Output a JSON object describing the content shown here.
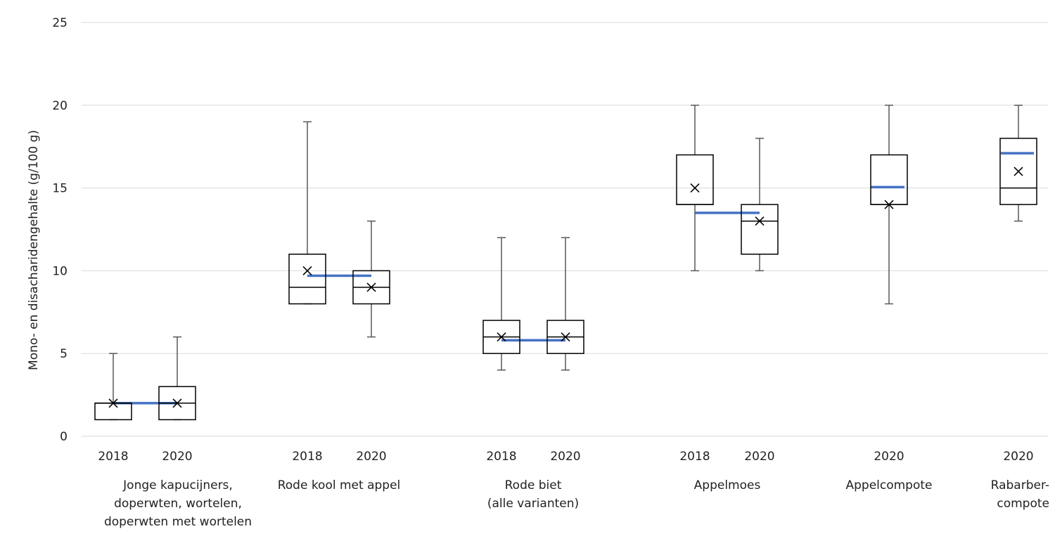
{
  "chart_data": {
    "type": "boxplot",
    "ylabel": "Mono- en disacharidengehalte  (g/100 g)",
    "ylim": [
      0,
      25
    ],
    "yticks": [
      0,
      5,
      10,
      15,
      20,
      25
    ],
    "grid": true,
    "colors": {
      "box": "#000000",
      "whisker": "#595959",
      "grid": "#d9d9d9",
      "trend": "#4472c4"
    },
    "groups": [
      {
        "label_lines": [
          "Jonge kapucijners,",
          "doperwten, wortelen,",
          "doperwten met wortelen"
        ],
        "boxes": [
          {
            "year": "2018",
            "min": 1,
            "q1": 1,
            "median": 2,
            "q3": 2,
            "max": 5,
            "mean": 2
          },
          {
            "year": "2020",
            "min": 1,
            "q1": 1,
            "median": 2,
            "q3": 3,
            "max": 6,
            "mean": 2
          }
        ],
        "trend_level": 2
      },
      {
        "label_lines": [
          "Rode kool met appel"
        ],
        "boxes": [
          {
            "year": "2018",
            "min": 8,
            "q1": 8,
            "median": 9,
            "q3": 11,
            "max": 19,
            "mean": 10
          },
          {
            "year": "2020",
            "min": 6,
            "q1": 8,
            "median": 9,
            "q3": 10,
            "max": 13,
            "mean": 9
          }
        ],
        "trend_level": 9.7
      },
      {
        "label_lines": [
          "Rode biet",
          "(alle varianten)"
        ],
        "boxes": [
          {
            "year": "2018",
            "min": 4,
            "q1": 5,
            "median": 6,
            "q3": 7,
            "max": 12,
            "mean": 6
          },
          {
            "year": "2020",
            "min": 4,
            "q1": 5,
            "median": 6,
            "q3": 7,
            "max": 12,
            "mean": 6
          }
        ],
        "trend_level": 5.8
      },
      {
        "label_lines": [
          "Appelmoes"
        ],
        "boxes": [
          {
            "year": "2018",
            "min": 10,
            "q1": 14,
            "median": 14,
            "q3": 17,
            "max": 20,
            "mean": 15
          },
          {
            "year": "2020",
            "min": 10,
            "q1": 11,
            "median": 13,
            "q3": 14,
            "max": 18,
            "mean": 13
          }
        ],
        "trend_level": 13.5
      },
      {
        "label_lines": [
          "Appelcompote"
        ],
        "boxes": [
          {
            "year": "2020",
            "min": 8,
            "q1": 14,
            "median": 14,
            "q3": 17,
            "max": 20,
            "mean": 14
          }
        ],
        "trend_level": 15.05
      },
      {
        "label_lines": [
          "Rabarber-",
          "compote"
        ],
        "label_align": "end",
        "boxes": [
          {
            "year": "2020",
            "min": 13,
            "q1": 14,
            "median": 15,
            "q3": 18,
            "max": 20,
            "mean": 16
          }
        ],
        "trend_level": 17.1
      }
    ]
  }
}
